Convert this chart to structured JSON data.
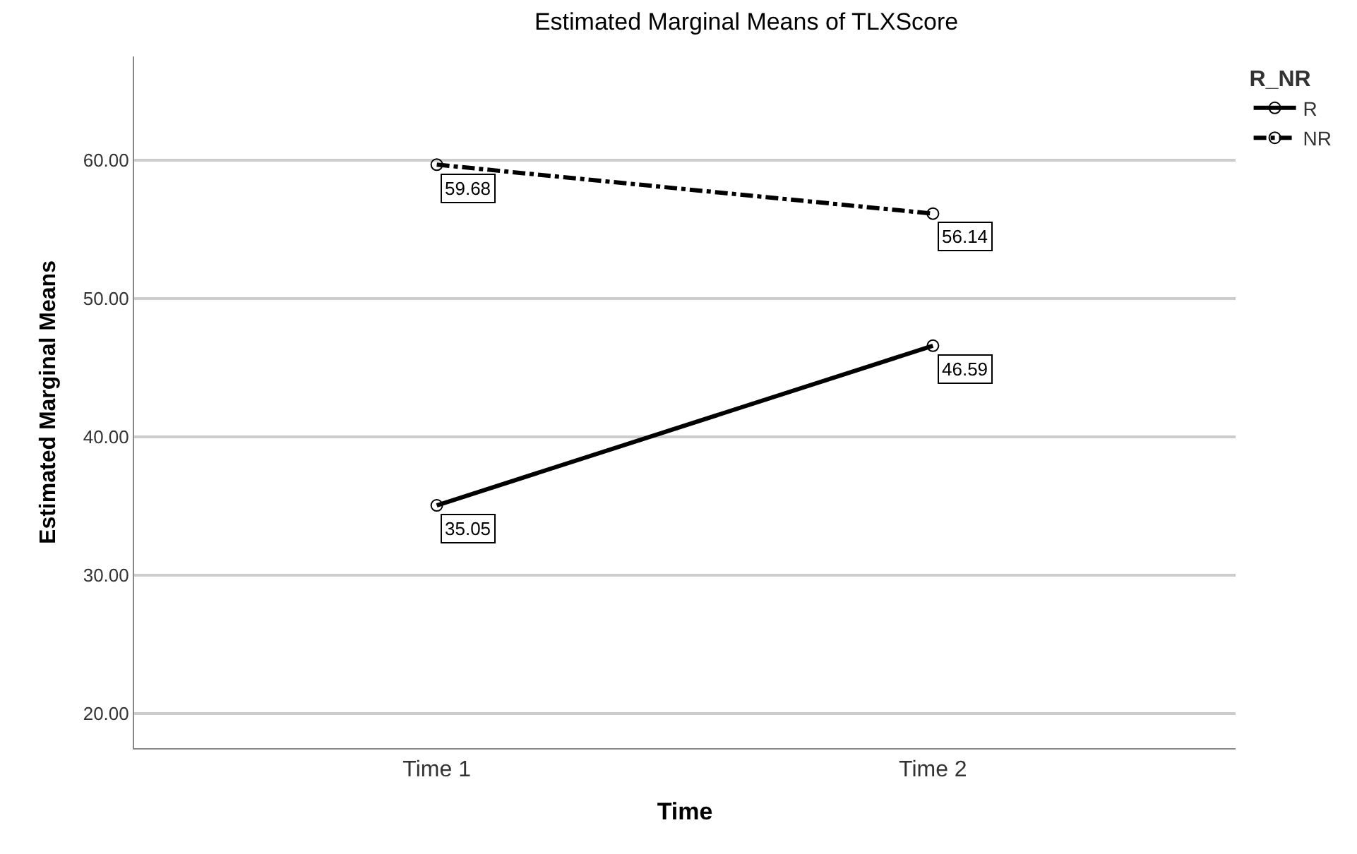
{
  "chart_data": {
    "type": "line",
    "title": "Estimated Marginal Means of TLXScore",
    "xlabel": "Time",
    "ylabel": "Estimated Marginal Means",
    "legend_title": "R_NR",
    "categories": [
      "Time 1",
      "Time 2"
    ],
    "series": [
      {
        "name": "R",
        "color": "#000000",
        "values": [
          35.05,
          46.59
        ],
        "line_style": "solid"
      },
      {
        "name": "NR",
        "color": "#000000",
        "values": [
          59.68,
          56.14
        ],
        "line_style": "dashed"
      }
    ],
    "ylim": [
      17.5,
      67.5
    ],
    "yticks": [
      {
        "value": 20,
        "label": "20.00"
      },
      {
        "value": 30,
        "label": "30.00"
      },
      {
        "value": 40,
        "label": "40.00"
      },
      {
        "value": 50,
        "label": "50.00"
      },
      {
        "value": 60,
        "label": "60.00"
      }
    ],
    "grid": "y",
    "legend": "top right",
    "marker": "circle",
    "data_labels": true
  }
}
